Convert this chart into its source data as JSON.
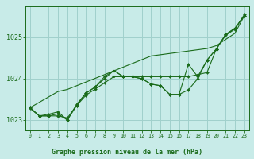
{
  "xlabel": "Graphe pression niveau de la mer (hPa)",
  "x_values": [
    0,
    1,
    2,
    3,
    4,
    5,
    6,
    7,
    8,
    9,
    10,
    11,
    12,
    13,
    14,
    15,
    16,
    17,
    18,
    19,
    20,
    21,
    22,
    23
  ],
  "series_with_markers": [
    [
      1023.3,
      1023.1,
      1023.1,
      1023.15,
      1023.0,
      1023.35,
      1023.65,
      1023.8,
      1024.05,
      1024.2,
      1024.05,
      1024.05,
      1024.0,
      1023.87,
      1023.83,
      1023.62,
      1023.62,
      1023.73,
      1024.0,
      1024.45,
      1024.72,
      1025.07,
      1025.22,
      1025.52
    ],
    [
      1023.28,
      1023.1,
      1023.14,
      1023.2,
      1023.0,
      1023.38,
      1023.65,
      1023.8,
      1024.0,
      1024.2,
      1024.05,
      1024.05,
      1024.0,
      1023.87,
      1023.83,
      1023.62,
      1023.62,
      1024.35,
      1024.05,
      1024.45,
      1024.72,
      1025.07,
      1025.22,
      1025.52
    ],
    [
      1023.3,
      1023.1,
      1023.1,
      1023.1,
      1023.05,
      1023.35,
      1023.6,
      1023.75,
      1023.9,
      1024.05,
      1024.05,
      1024.05,
      1024.05,
      1024.05,
      1024.05,
      1024.05,
      1024.05,
      1024.05,
      1024.1,
      1024.15,
      1024.72,
      1025.05,
      1025.2,
      1025.55
    ]
  ],
  "series_straight": [
    1023.3,
    1023.43,
    1023.56,
    1023.69,
    1023.74,
    1023.83,
    1023.92,
    1024.01,
    1024.1,
    1024.19,
    1024.28,
    1024.37,
    1024.46,
    1024.55,
    1024.58,
    1024.61,
    1024.64,
    1024.67,
    1024.7,
    1024.73,
    1024.8,
    1024.95,
    1025.1,
    1025.52
  ],
  "line_color": "#1a6b1a",
  "marker_color": "#1a6b1a",
  "bg_color": "#c8ebe8",
  "grid_color": "#a0d0cc",
  "ylim": [
    1022.75,
    1025.75
  ],
  "yticks": [
    1023,
    1024,
    1025
  ],
  "xlim": [
    -0.5,
    23.5
  ]
}
